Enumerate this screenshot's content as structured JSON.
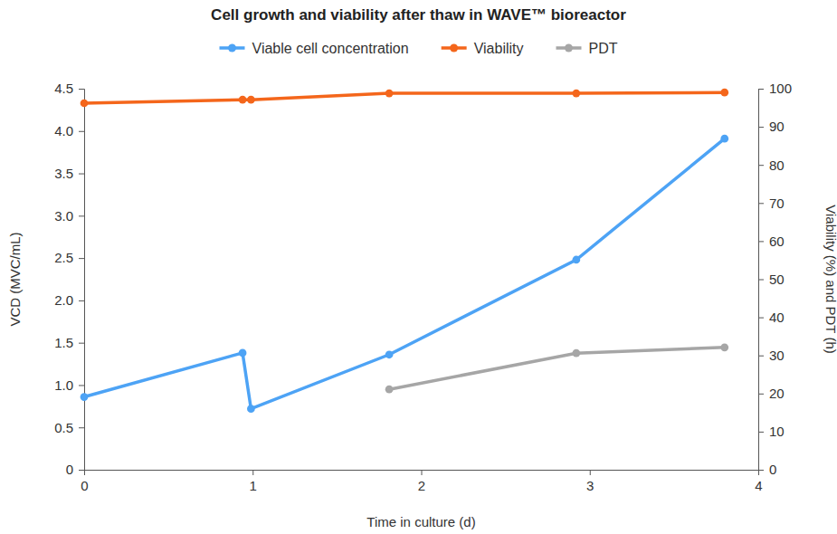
{
  "chart_data": {
    "type": "line",
    "title": "Cell growth and viability after thaw in WAVE™ bioreactor",
    "x_label": "Time in culture (d)",
    "y_label": "VCD (MVC/mL)",
    "y2_label": "Viability (%) and PDT (h)",
    "x": [
      0,
      0.94,
      0.99,
      1.81,
      2.92,
      3.8
    ],
    "series": [
      {
        "name": "Viable cell concentration",
        "color": "#4da3f5",
        "marker": "circle",
        "line_style": "solid",
        "axis": "y",
        "values": [
          0.86,
          1.38,
          0.72,
          1.36,
          2.48,
          3.91
        ]
      },
      {
        "name": "Viability",
        "color": "#f4661b",
        "marker": "circle",
        "line_style": "solid",
        "axis": "y2",
        "values": [
          96.2,
          97.1,
          97.1,
          98.8,
          98.8,
          99.0
        ]
      },
      {
        "name": "PDT",
        "color": "#a6a6a6",
        "marker": "circle",
        "line_style": "solid",
        "axis": "y2",
        "values": [
          null,
          null,
          null,
          21.1,
          30.6,
          32.1
        ]
      }
    ],
    "xlim": [
      0,
      4
    ],
    "xticks": [
      0,
      1,
      2,
      3,
      4
    ],
    "ylim": [
      0,
      4.5
    ],
    "yticks": [
      0,
      0.5,
      {
        "value": 1,
        "label": "1.0"
      },
      1.5,
      {
        "value": 2,
        "label": "2.0"
      },
      2.5,
      {
        "value": 3,
        "label": "3.0"
      },
      3.5,
      {
        "value": 4,
        "label": "4.0"
      },
      4.5
    ],
    "y2lim": [
      0,
      100
    ],
    "y2ticks": [
      0,
      10,
      20,
      30,
      40,
      50,
      60,
      70,
      80,
      90,
      100
    ],
    "grid": false,
    "legend": "top"
  }
}
